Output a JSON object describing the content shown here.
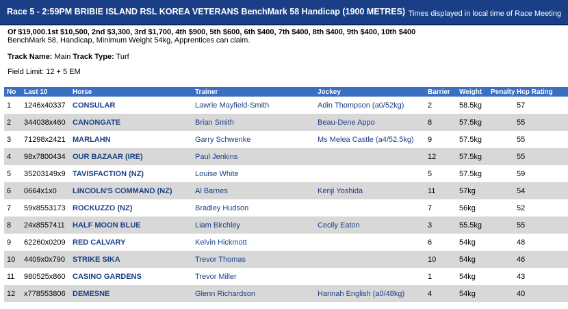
{
  "race": {
    "title": "Race 5 - 2:59PM BRIBIE ISLAND RSL KOREA VETERANS BenchMark 58 Handicap (1900 METRES)",
    "times_note": "Times displayed in local time of Race Meeting",
    "prize": "Of $19,000.1st $10,500, 2nd $3,300, 3rd $1,700, 4th $900, 5th $600, 6th $400, 7th $400, 8th $400, 9th $400, 10th $400",
    "conditions": "BenchMark 58, Handicap, Minimum Weight 54kg, Apprentices can claim.",
    "track_name_label": "Track Name:",
    "track_name": "Main",
    "track_type_label": "Track Type:",
    "track_type": "Turf",
    "field_limit": "Field Limit: 12 + 5 EM"
  },
  "table": {
    "headers": {
      "no": "No",
      "last10": "Last 10",
      "horse": "Horse",
      "trainer": "Trainer",
      "jockey": "Jockey",
      "barrier": "Barrier",
      "weight": "Weight",
      "penalty": "Penalty",
      "rating": "Hcp Rating"
    },
    "rows": [
      {
        "no": "1",
        "last10": "1246x40337",
        "horse": "CONSULAR",
        "trainer": "Lawrie Mayfield-Smith",
        "jockey": "Adin Thompson (a0/52kg)",
        "barrier": "2",
        "weight": "58.5kg",
        "penalty": "",
        "rating": "57"
      },
      {
        "no": "2",
        "last10": "344038x460",
        "horse": "CANONGATE",
        "trainer": "Brian Smith",
        "jockey": "Beau-Dene Appo",
        "barrier": "8",
        "weight": "57.5kg",
        "penalty": "",
        "rating": "55"
      },
      {
        "no": "3",
        "last10": "71298x2421",
        "horse": "MARLAHN",
        "trainer": "Garry Schwenke",
        "jockey": "Ms Melea Castle (a4/52.5kg)",
        "barrier": "9",
        "weight": "57.5kg",
        "penalty": "",
        "rating": "55"
      },
      {
        "no": "4",
        "last10": "98x7800434",
        "horse": "OUR BAZAAR (IRE)",
        "trainer": "Paul Jenkins",
        "jockey": "",
        "barrier": "12",
        "weight": "57.5kg",
        "penalty": "",
        "rating": "55"
      },
      {
        "no": "5",
        "last10": "35203149x9",
        "horse": "TAVISFACTION (NZ)",
        "trainer": "Louise White",
        "jockey": "",
        "barrier": "5",
        "weight": "57.5kg",
        "penalty": "",
        "rating": "59"
      },
      {
        "no": "6",
        "last10": "0664x1x0",
        "horse": "LINCOLN'S COMMAND (NZ)",
        "trainer": "Al Barnes",
        "jockey": "Kenji Yoshida",
        "barrier": "11",
        "weight": "57kg",
        "penalty": "",
        "rating": "54"
      },
      {
        "no": "7",
        "last10": "59x8553173",
        "horse": "ROCKUZZO (NZ)",
        "trainer": "Bradley Hudson",
        "jockey": "",
        "barrier": "7",
        "weight": "56kg",
        "penalty": "",
        "rating": "52"
      },
      {
        "no": "8",
        "last10": "24x8557411",
        "horse": "HALF MOON BLUE",
        "trainer": "Liam Birchley",
        "jockey": "Cecily Eaton",
        "barrier": "3",
        "weight": "55.5kg",
        "penalty": "",
        "rating": "55"
      },
      {
        "no": "9",
        "last10": "62260x0209",
        "horse": "RED CALVARY",
        "trainer": "Kelvin Hickmott",
        "jockey": "",
        "barrier": "6",
        "weight": "54kg",
        "penalty": "",
        "rating": "48"
      },
      {
        "no": "10",
        "last10": "4409x0x790",
        "horse": "STRIKE SIKA",
        "trainer": "Trevor Thomas",
        "jockey": "",
        "barrier": "10",
        "weight": "54kg",
        "penalty": "",
        "rating": "46"
      },
      {
        "no": "11",
        "last10": "980525x860",
        "horse": "CASINO GARDENS",
        "trainer": "Trevor Miller",
        "jockey": "",
        "barrier": "1",
        "weight": "54kg",
        "penalty": "",
        "rating": "43"
      },
      {
        "no": "12",
        "last10": "x778553806",
        "horse": "DEMESNE",
        "trainer": "Glenn Richardson",
        "jockey": "Hannah English (a0/48kg)",
        "barrier": "4",
        "weight": "54kg",
        "penalty": "",
        "rating": "40"
      }
    ]
  }
}
